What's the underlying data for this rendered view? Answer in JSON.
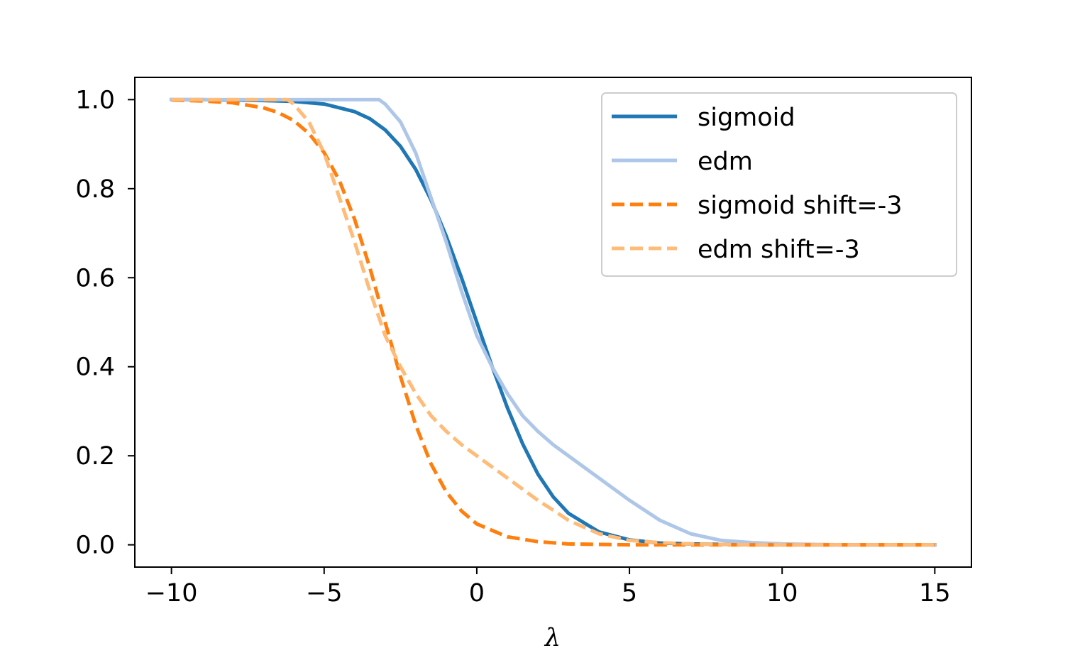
{
  "chart_data": {
    "type": "line",
    "title": "",
    "xlabel": "λ",
    "ylabel": "",
    "xlim": [
      -11.2,
      16.2
    ],
    "ylim": [
      -0.05,
      1.05
    ],
    "xticks": [
      -10,
      -5,
      0,
      5,
      10,
      15
    ],
    "xtick_labels": [
      "−10",
      "−5",
      "0",
      "5",
      "10",
      "15"
    ],
    "yticks": [
      0.0,
      0.2,
      0.4,
      0.6,
      0.8,
      1.0
    ],
    "ytick_labels": [
      "0.0",
      "0.2",
      "0.4",
      "0.6",
      "0.8",
      "1.0"
    ],
    "grid": false,
    "legend_position": "top-right",
    "series": [
      {
        "name": "sigmoid",
        "color": "#1f77b4",
        "dash": "solid",
        "x": [
          -10,
          -9,
          -8,
          -7,
          -6,
          -5,
          -4,
          -3.5,
          -3,
          -2.5,
          -2,
          -1.5,
          -1,
          -0.5,
          0,
          0.5,
          1,
          1.5,
          2,
          2.5,
          3,
          4,
          5,
          6,
          7,
          8,
          9,
          10,
          11,
          12,
          13,
          14,
          15
        ],
        "y": [
          1.0,
          1.0,
          0.999,
          0.998,
          0.996,
          0.99,
          0.973,
          0.957,
          0.932,
          0.895,
          0.843,
          0.775,
          0.693,
          0.6,
          0.5,
          0.401,
          0.308,
          0.227,
          0.159,
          0.108,
          0.071,
          0.029,
          0.011,
          0.004,
          0.002,
          0.001,
          0.0,
          0.0,
          0.0,
          0.0,
          0.0,
          0.0,
          0.0
        ]
      },
      {
        "name": "edm",
        "color": "#aec7e8",
        "dash": "solid",
        "x": [
          -10,
          -9,
          -8,
          -7,
          -6,
          -5,
          -4,
          -3.5,
          -3.2,
          -3,
          -2.5,
          -2,
          -1.5,
          -1,
          -0.5,
          0,
          0.5,
          1,
          1.5,
          2,
          2.5,
          3,
          4,
          5,
          6,
          7,
          8,
          9,
          10,
          11,
          12,
          13,
          14,
          15
        ],
        "y": [
          1.0,
          1.0,
          1.0,
          1.0,
          1.0,
          1.0,
          1.0,
          1.0,
          1.0,
          0.99,
          0.95,
          0.88,
          0.78,
          0.68,
          0.57,
          0.47,
          0.4,
          0.34,
          0.29,
          0.255,
          0.225,
          0.2,
          0.15,
          0.1,
          0.055,
          0.025,
          0.01,
          0.005,
          0.002,
          0.001,
          0.0,
          0.0,
          0.0,
          0.0
        ]
      },
      {
        "name": "sigmoid shift=-3",
        "color": "#ff7f0e",
        "dash": "dashed",
        "x": [
          -10,
          -9,
          -8,
          -7,
          -6.5,
          -6,
          -5.5,
          -5,
          -4.5,
          -4,
          -3.5,
          -3,
          -2.5,
          -2,
          -1.5,
          -1,
          -0.5,
          0,
          1,
          2,
          3,
          4,
          5,
          6,
          7,
          8,
          9,
          10,
          11,
          12,
          13,
          14,
          15
        ],
        "y": [
          0.999,
          0.997,
          0.993,
          0.982,
          0.971,
          0.953,
          0.924,
          0.881,
          0.818,
          0.731,
          0.622,
          0.5,
          0.378,
          0.269,
          0.182,
          0.119,
          0.076,
          0.047,
          0.018,
          0.007,
          0.002,
          0.001,
          0.0,
          0.0,
          0.0,
          0.0,
          0.0,
          0.0,
          0.0,
          0.0,
          0.0,
          0.0,
          0.0
        ]
      },
      {
        "name": "edm shift=-3",
        "color": "#ffbb78",
        "dash": "dashed",
        "x": [
          -10,
          -9,
          -8,
          -7,
          -6.2,
          -6,
          -5.5,
          -5,
          -4.5,
          -4,
          -3.5,
          -3,
          -2.5,
          -2,
          -1.5,
          -1,
          -0.5,
          0,
          0.5,
          1,
          1.5,
          2,
          2.5,
          3,
          4,
          5,
          6,
          7,
          8,
          9,
          10,
          11,
          12,
          13,
          14,
          15
        ],
        "y": [
          1.0,
          1.0,
          1.0,
          1.0,
          1.0,
          0.99,
          0.95,
          0.88,
          0.78,
          0.68,
          0.57,
          0.47,
          0.4,
          0.34,
          0.29,
          0.255,
          0.225,
          0.2,
          0.175,
          0.15,
          0.125,
          0.1,
          0.078,
          0.055,
          0.025,
          0.01,
          0.005,
          0.002,
          0.001,
          0.0,
          0.0,
          0.0,
          0.0,
          0.0,
          0.0,
          0.0
        ]
      }
    ]
  }
}
